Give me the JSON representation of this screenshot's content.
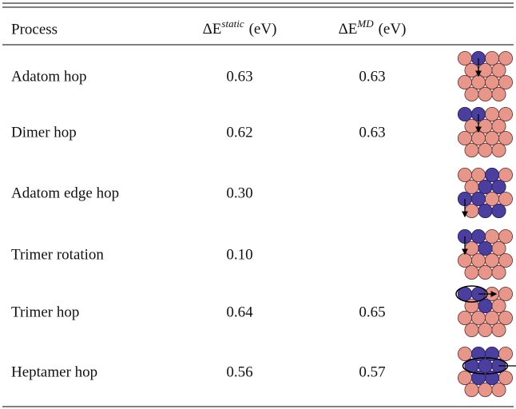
{
  "table": {
    "header": [
      {
        "text": "Process"
      },
      {
        "symbol": "ΔE",
        "sup": "static",
        "unit": "(eV)"
      },
      {
        "symbol": "ΔE",
        "sup": "MD",
        "unit": "(eV)"
      }
    ],
    "rows": [
      [
        "Adatom hop",
        "0.63",
        "0.63"
      ],
      [
        "Dimer hop",
        "0.62",
        "0.63"
      ],
      [
        "Adatom edge hop",
        "0.30",
        null
      ],
      [
        "Trimer rotation",
        "0.10",
        null
      ],
      [
        "Trimer hop",
        "0.64",
        "0.65"
      ],
      [
        "Heptamer hop",
        "0.56",
        "0.57"
      ]
    ]
  }
}
